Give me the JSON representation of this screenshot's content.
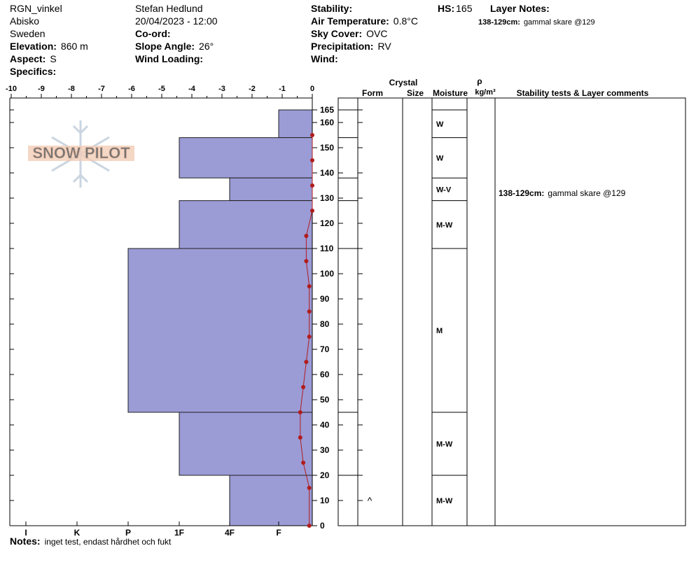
{
  "header": {
    "columns": [
      [
        {
          "value": "RGN_vinkel"
        },
        {
          "value": "Abisko"
        },
        {
          "value": "Sweden"
        },
        {
          "label": "Elevation:",
          "value": "860 m"
        },
        {
          "label": "Aspect:",
          "value": "S"
        },
        {
          "label": "Specifics:"
        }
      ],
      [
        {
          "value": "Stefan Hedlund"
        },
        {
          "value": "20/04/2023 - 12:00"
        },
        {
          "label": "Co-ord:"
        },
        {
          "label": "Slope Angle:",
          "value": "26°"
        },
        {
          "label": "Wind Loading:"
        }
      ],
      [
        {
          "label": "Stability:"
        },
        {
          "label": "Air Temperature:",
          "value": "0.8°C"
        },
        {
          "label": "Sky Cover:",
          "value": "OVC"
        },
        {
          "label": "Precipitation:",
          "value": "RV"
        },
        {
          "label": "Wind:"
        }
      ]
    ],
    "hs_label": "HS:",
    "hs": "165",
    "layer_notes_title": "Layer Notes:",
    "layer_notes": [
      {
        "range": "138-129cm:",
        "text": "gammal skare @129"
      }
    ]
  },
  "watermark": "SNOW PILOT",
  "chart_data": {
    "type": "snow-profile",
    "xlim": [
      -10,
      0
    ],
    "xticks": [
      -10,
      -9,
      -8,
      -7,
      -6,
      -5,
      -4,
      -3,
      -2,
      -1,
      0
    ],
    "ylim": [
      0,
      165
    ],
    "yticks": [
      0,
      10,
      20,
      30,
      40,
      50,
      60,
      70,
      80,
      90,
      100,
      110,
      120,
      130,
      140,
      150,
      160,
      165
    ],
    "hardness_ticks": [
      "I",
      "K",
      "P",
      "1F",
      "4F",
      "F"
    ],
    "columns": {
      "crystal": "Crystal",
      "form": "Form",
      "size": "Size",
      "moisture": "Moisture",
      "density": "ρ",
      "density_unit": "kg/m³",
      "comments": "Stability tests & Layer comments"
    },
    "layers": [
      {
        "top": 165,
        "bottom": 154,
        "hardness": "F",
        "moisture": "W",
        "form": null
      },
      {
        "top": 154,
        "bottom": 138,
        "hardness": "1F",
        "moisture": "W",
        "form": null
      },
      {
        "top": 138,
        "bottom": 129,
        "hardness": "4F",
        "moisture": "W-V",
        "form": null
      },
      {
        "top": 129,
        "bottom": 110,
        "hardness": "1F",
        "moisture": "M-W",
        "form": null
      },
      {
        "top": 110,
        "bottom": 45,
        "hardness": "P",
        "moisture": "M",
        "form": null
      },
      {
        "top": 45,
        "bottom": 20,
        "hardness": "1F",
        "moisture": "M-W",
        "form": null
      },
      {
        "top": 20,
        "bottom": 0,
        "hardness": "4F",
        "moisture": "M-W",
        "form": "^"
      }
    ],
    "bar_color": "#9b9bd6",
    "temperature": {
      "color": "#b01c1c",
      "heights": [
        155,
        145,
        135,
        125,
        115,
        105,
        95,
        85,
        75,
        65,
        55,
        45,
        35,
        25,
        15,
        0
      ],
      "values": [
        0,
        0,
        0,
        0,
        -0.2,
        -0.2,
        -0.1,
        -0.1,
        -0.1,
        -0.2,
        -0.3,
        -0.4,
        -0.4,
        -0.3,
        -0.1,
        -0.1
      ]
    },
    "notes_label": "Notes:",
    "notes": "inget test, endast hårdhet och fukt"
  }
}
